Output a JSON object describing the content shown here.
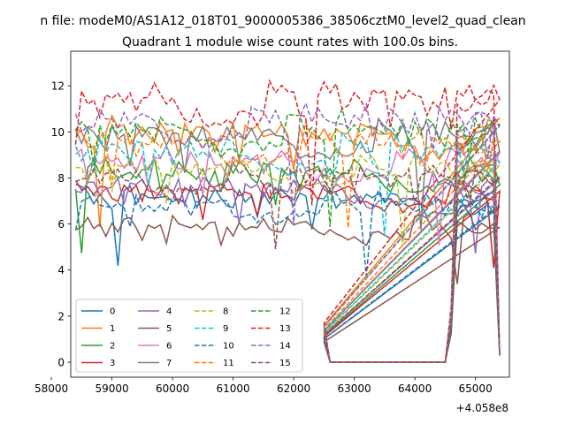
{
  "chart_data": {
    "type": "line",
    "suptitle": "n file: modeM0/AS1A12_018T01_9000005386_38506cztM0_level2_quad_clean",
    "title": "Quadrant 1 module wise count rates with 100.0s bins.",
    "xlabel": "",
    "ylabel": "",
    "x_offset_label": "+4.058e8",
    "x_offset": 405800000,
    "xlim": [
      405858320,
      405865560
    ],
    "ylim": [
      -0.65,
      13.5
    ],
    "xticks": [
      58000,
      59000,
      60000,
      61000,
      62000,
      63000,
      64000,
      65000
    ],
    "xtick_labels": [
      "58000",
      "59000",
      "60000",
      "61000",
      "62000",
      "63000",
      "64000",
      "65000"
    ],
    "yticks": [
      0,
      2,
      4,
      6,
      8,
      10,
      12
    ],
    "ytick_labels": [
      "0",
      "2",
      "4",
      "6",
      "8",
      "10",
      "12"
    ],
    "grid": false,
    "legend_placement": "lower-left",
    "legend_columns": 4,
    "x_start": 405858400,
    "bin_seconds": 100,
    "num_bins": 71,
    "shape": [
      1.0,
      0.97,
      0.98,
      0.94,
      0.96,
      0.9,
      0.88,
      0.55,
      0.95,
      1.0,
      0.94,
      0.98,
      0.92,
      0.93,
      0.95,
      0.93,
      0.9,
      0.96,
      0.94,
      0.98,
      0.86,
      0.96,
      0.92,
      0.97,
      0.95,
      0.93,
      0.88,
      0.95,
      0.91,
      0.96,
      0.82,
      0.97,
      0.94,
      0.98,
      0.95,
      0.93,
      0.91,
      0.97,
      0.94,
      0.78,
      0.96,
      0.91,
      0.95,
      0.89,
      0.94,
      0.92,
      0.96,
      0.93,
      0.95,
      0.9,
      0.96,
      0.94,
      0.97,
      0.95,
      0.93,
      0.94,
      0.9,
      0.88,
      0.86,
      0.88,
      0.84,
      0.85,
      0.86,
      0.84,
      0.87,
      0.86,
      0.88,
      0.87,
      0.89,
      0.86,
      0.88
    ],
    "gap": {
      "fall_start": 62400,
      "zero_from": 62600,
      "zero_to": 64500,
      "rise_end": 64700,
      "end": 65400
    },
    "series": [
      {
        "name": "0",
        "level": 7.6,
        "style": "solid",
        "color": "#1f77b4"
      },
      {
        "name": "1",
        "level": 10.6,
        "style": "solid",
        "color": "#ff7f0e"
      },
      {
        "name": "2",
        "level": 8.8,
        "style": "solid",
        "color": "#2ca02c"
      },
      {
        "name": "3",
        "level": 7.9,
        "style": "solid",
        "color": "#d62728"
      },
      {
        "name": "4",
        "level": 8.1,
        "style": "solid",
        "color": "#9467bd"
      },
      {
        "name": "5",
        "level": 6.3,
        "style": "solid",
        "color": "#8c564b"
      },
      {
        "name": "6",
        "level": 9.3,
        "style": "solid",
        "color": "#e377c2"
      },
      {
        "name": "7",
        "level": 10.5,
        "style": "solid",
        "color": "#7f7f7f"
      },
      {
        "name": "8",
        "level": 9.0,
        "style": "dashed",
        "color": "#bcbd22"
      },
      {
        "name": "9",
        "level": 9.8,
        "style": "dashed",
        "color": "#17becf"
      },
      {
        "name": "10",
        "level": 7.3,
        "style": "dashed",
        "color": "#1f77b4"
      },
      {
        "name": "11",
        "level": 10.2,
        "style": "dashed",
        "color": "#ff7f0e"
      },
      {
        "name": "12",
        "level": 10.8,
        "style": "dashed",
        "color": "#2ca02c"
      },
      {
        "name": "13",
        "level": 12.2,
        "style": "dashed",
        "color": "#d62728"
      },
      {
        "name": "14",
        "level": 11.2,
        "style": "dashed",
        "color": "#9467bd"
      },
      {
        "name": "15",
        "level": 8.6,
        "style": "dashed",
        "color": "#8c564b"
      }
    ]
  }
}
